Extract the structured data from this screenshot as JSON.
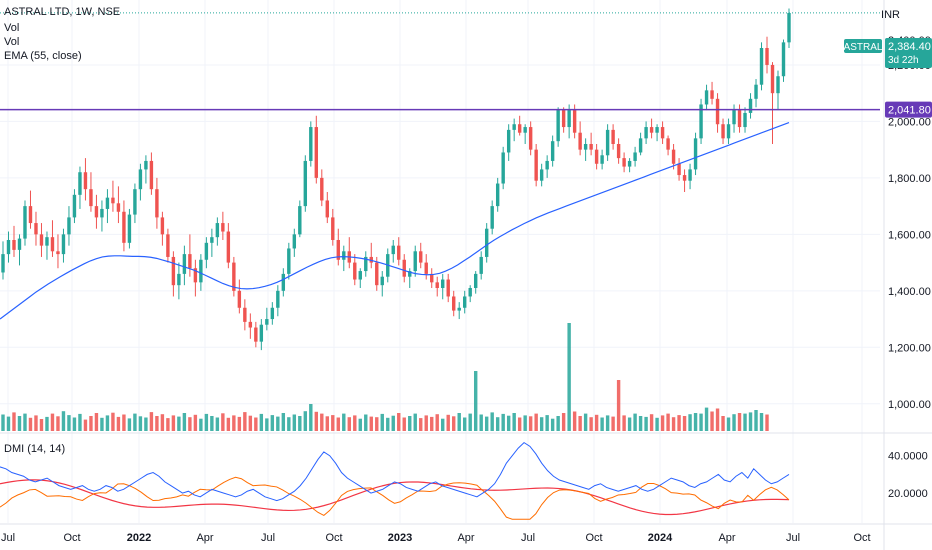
{
  "header": {
    "symbol_line": "ASTRAL LTD, 1W, NSE",
    "vol_label_1": "Vol",
    "vol_label_2": "Vol",
    "ema_label": "EMA (55, close)",
    "dmi_label": "DMI (14, 14)",
    "currency": "INR"
  },
  "price_tags": {
    "symbol": "ASTRAL",
    "last_price": "2,384.40",
    "countdown": "3d 22h",
    "hline_price": "2,041.80",
    "partial_top": "2,400.00"
  },
  "colors": {
    "up": "#26a69a",
    "down": "#ef5350",
    "ema": "#2962ff",
    "hline": "#673ab7",
    "dmi_plus": "#2962ff",
    "dmi_minus": "#ff6d00",
    "adx": "#f23645",
    "axis_text": "#131722",
    "grid": "#f0f3fa"
  },
  "chart_data": {
    "type": "candlestick",
    "interval": "1W",
    "x_range": [
      "2021-07",
      "2024-10"
    ],
    "x_tick_labels": [
      "Jul",
      "Oct",
      "2022",
      "Apr",
      "Jul",
      "Oct",
      "2023",
      "Apr",
      "Jul",
      "Oct",
      "2024",
      "Apr",
      "Jul",
      "Oct"
    ],
    "price_axis": {
      "ticks": [
        "2,200.00",
        "2,000.00",
        "1,800.00",
        "1,600.00",
        "1,400.00",
        "1,200.00",
        "1,000.00"
      ],
      "ylim": [
        900,
        2430
      ]
    },
    "indicator_axis": {
      "ticks": [
        "40.0000",
        "20.0000"
      ],
      "ylim": [
        4,
        50
      ]
    },
    "horizontal_line": 2041.8,
    "candles_ohlc": [
      [
        1465,
        1575,
        1440,
        1530
      ],
      [
        1530,
        1610,
        1500,
        1580
      ],
      [
        1580,
        1630,
        1520,
        1545
      ],
      [
        1545,
        1600,
        1490,
        1585
      ],
      [
        1585,
        1720,
        1560,
        1700
      ],
      [
        1700,
        1755,
        1620,
        1640
      ],
      [
        1640,
        1680,
        1560,
        1600
      ],
      [
        1600,
        1640,
        1520,
        1560
      ],
      [
        1560,
        1610,
        1510,
        1590
      ],
      [
        1590,
        1650,
        1520,
        1540
      ],
      [
        1540,
        1600,
        1480,
        1530
      ],
      [
        1530,
        1620,
        1500,
        1600
      ],
      [
        1600,
        1700,
        1560,
        1660
      ],
      [
        1660,
        1760,
        1640,
        1740
      ],
      [
        1740,
        1840,
        1690,
        1820
      ],
      [
        1820,
        1870,
        1720,
        1760
      ],
      [
        1760,
        1820,
        1680,
        1700
      ],
      [
        1700,
        1740,
        1620,
        1660
      ],
      [
        1660,
        1720,
        1610,
        1690
      ],
      [
        1690,
        1760,
        1640,
        1730
      ],
      [
        1730,
        1790,
        1680,
        1710
      ],
      [
        1710,
        1770,
        1640,
        1680
      ],
      [
        1680,
        1720,
        1540,
        1570
      ],
      [
        1570,
        1690,
        1550,
        1670
      ],
      [
        1670,
        1780,
        1640,
        1760
      ],
      [
        1760,
        1850,
        1720,
        1830
      ],
      [
        1830,
        1880,
        1780,
        1860
      ],
      [
        1860,
        1890,
        1740,
        1760
      ],
      [
        1760,
        1800,
        1620,
        1660
      ],
      [
        1660,
        1680,
        1560,
        1600
      ],
      [
        1600,
        1620,
        1500,
        1520
      ],
      [
        1520,
        1540,
        1380,
        1420
      ],
      [
        1420,
        1500,
        1370,
        1460
      ],
      [
        1460,
        1560,
        1420,
        1530
      ],
      [
        1530,
        1600,
        1450,
        1480
      ],
      [
        1480,
        1510,
        1380,
        1430
      ],
      [
        1430,
        1530,
        1400,
        1510
      ],
      [
        1510,
        1590,
        1480,
        1570
      ],
      [
        1570,
        1620,
        1520,
        1590
      ],
      [
        1590,
        1660,
        1560,
        1640
      ],
      [
        1640,
        1680,
        1580,
        1610
      ],
      [
        1610,
        1640,
        1480,
        1500
      ],
      [
        1500,
        1520,
        1380,
        1400
      ],
      [
        1400,
        1440,
        1320,
        1340
      ],
      [
        1340,
        1370,
        1260,
        1290
      ],
      [
        1290,
        1320,
        1230,
        1270
      ],
      [
        1270,
        1290,
        1200,
        1220
      ],
      [
        1220,
        1300,
        1190,
        1280
      ],
      [
        1280,
        1340,
        1260,
        1300
      ],
      [
        1300,
        1360,
        1280,
        1340
      ],
      [
        1340,
        1420,
        1310,
        1400
      ],
      [
        1400,
        1480,
        1380,
        1460
      ],
      [
        1460,
        1570,
        1440,
        1550
      ],
      [
        1550,
        1620,
        1520,
        1600
      ],
      [
        1600,
        1720,
        1590,
        1700
      ],
      [
        1700,
        1880,
        1680,
        1860
      ],
      [
        1860,
        2000,
        1840,
        1980
      ],
      [
        1980,
        2020,
        1780,
        1800
      ],
      [
        1800,
        1830,
        1700,
        1720
      ],
      [
        1720,
        1750,
        1640,
        1660
      ],
      [
        1660,
        1690,
        1560,
        1580
      ],
      [
        1580,
        1620,
        1490,
        1510
      ],
      [
        1510,
        1560,
        1470,
        1540
      ],
      [
        1540,
        1590,
        1480,
        1500
      ],
      [
        1500,
        1530,
        1420,
        1440
      ],
      [
        1440,
        1480,
        1410,
        1470
      ],
      [
        1470,
        1540,
        1450,
        1520
      ],
      [
        1520,
        1570,
        1480,
        1500
      ],
      [
        1500,
        1520,
        1400,
        1420
      ],
      [
        1420,
        1470,
        1380,
        1450
      ],
      [
        1450,
        1550,
        1430,
        1530
      ],
      [
        1530,
        1580,
        1500,
        1560
      ],
      [
        1560,
        1590,
        1490,
        1510
      ],
      [
        1510,
        1530,
        1430,
        1450
      ],
      [
        1450,
        1480,
        1410,
        1470
      ],
      [
        1470,
        1560,
        1450,
        1540
      ],
      [
        1540,
        1570,
        1480,
        1500
      ],
      [
        1500,
        1530,
        1440,
        1460
      ],
      [
        1460,
        1480,
        1410,
        1430
      ],
      [
        1430,
        1450,
        1380,
        1410
      ],
      [
        1410,
        1460,
        1370,
        1440
      ],
      [
        1440,
        1460,
        1360,
        1380
      ],
      [
        1380,
        1400,
        1310,
        1330
      ],
      [
        1330,
        1360,
        1300,
        1340
      ],
      [
        1340,
        1400,
        1320,
        1380
      ],
      [
        1380,
        1420,
        1360,
        1410
      ],
      [
        1410,
        1470,
        1390,
        1460
      ],
      [
        1460,
        1540,
        1440,
        1520
      ],
      [
        1520,
        1640,
        1500,
        1620
      ],
      [
        1620,
        1720,
        1600,
        1700
      ],
      [
        1700,
        1800,
        1680,
        1780
      ],
      [
        1780,
        1910,
        1760,
        1890
      ],
      [
        1890,
        1990,
        1860,
        1970
      ],
      [
        1970,
        2010,
        1930,
        1990
      ],
      [
        1990,
        2020,
        1950,
        1960
      ],
      [
        1960,
        1990,
        1920,
        1980
      ],
      [
        1980,
        2000,
        1880,
        1900
      ],
      [
        1900,
        1920,
        1770,
        1790
      ],
      [
        1790,
        1850,
        1770,
        1830
      ],
      [
        1830,
        1880,
        1800,
        1860
      ],
      [
        1860,
        1950,
        1840,
        1930
      ],
      [
        1930,
        2050,
        1910,
        2040
      ],
      [
        2040,
        2050,
        1960,
        1980
      ],
      [
        1980,
        2060,
        1940,
        2040
      ],
      [
        2040,
        2060,
        1940,
        1960
      ],
      [
        1960,
        2000,
        1880,
        1900
      ],
      [
        1900,
        1940,
        1860,
        1920
      ],
      [
        1920,
        1960,
        1880,
        1900
      ],
      [
        1900,
        1920,
        1830,
        1850
      ],
      [
        1850,
        1900,
        1830,
        1880
      ],
      [
        1880,
        1990,
        1860,
        1970
      ],
      [
        1970,
        1990,
        1900,
        1920
      ],
      [
        1920,
        1940,
        1850,
        1870
      ],
      [
        1870,
        1890,
        1820,
        1840
      ],
      [
        1840,
        1870,
        1820,
        1860
      ],
      [
        1860,
        1910,
        1840,
        1890
      ],
      [
        1890,
        1960,
        1880,
        1940
      ],
      [
        1940,
        2000,
        1920,
        1980
      ],
      [
        1980,
        2010,
        1940,
        1960
      ],
      [
        1960,
        1990,
        1930,
        1980
      ],
      [
        1980,
        2000,
        1920,
        1940
      ],
      [
        1940,
        1950,
        1880,
        1900
      ],
      [
        1900,
        1920,
        1830,
        1850
      ],
      [
        1850,
        1870,
        1790,
        1810
      ],
      [
        1810,
        1830,
        1750,
        1790
      ],
      [
        1790,
        1850,
        1760,
        1830
      ],
      [
        1830,
        1960,
        1810,
        1940
      ],
      [
        1940,
        2080,
        1920,
        2060
      ],
      [
        2060,
        2130,
        2040,
        2110
      ],
      [
        2110,
        2140,
        2060,
        2080
      ],
      [
        2080,
        2100,
        1960,
        1990
      ],
      [
        1990,
        2010,
        1920,
        1940
      ],
      [
        1940,
        2010,
        1920,
        1990
      ],
      [
        1990,
        2060,
        1960,
        2040
      ],
      [
        2040,
        2060,
        1960,
        1980
      ],
      [
        1980,
        2050,
        1960,
        2030
      ],
      [
        2030,
        2100,
        2010,
        2080
      ],
      [
        2080,
        2150,
        2050,
        2130
      ],
      [
        2130,
        2280,
        2110,
        2260
      ],
      [
        2260,
        2300,
        2170,
        2200
      ],
      [
        2200,
        2210,
        1920,
        2100
      ],
      [
        2100,
        2180,
        2040,
        2160
      ],
      [
        2160,
        2290,
        2140,
        2280
      ],
      [
        2280,
        2400,
        2260,
        2384
      ]
    ],
    "ema_55": [
      1300,
      1316,
      1332,
      1348,
      1364,
      1380,
      1396,
      1410,
      1424,
      1437,
      1450,
      1462,
      1474,
      1485,
      1496,
      1506,
      1514,
      1520,
      1523,
      1524,
      1524,
      1523,
      1522,
      1522,
      1521,
      1519,
      1515,
      1509,
      1503,
      1496,
      1489,
      1482,
      1475,
      1466,
      1456,
      1446,
      1436,
      1426,
      1418,
      1412,
      1408,
      1407,
      1408,
      1411,
      1416,
      1422,
      1430,
      1440,
      1451,
      1462,
      1473,
      1484,
      1494,
      1503,
      1511,
      1517,
      1520,
      1521,
      1520,
      1518,
      1515,
      1511,
      1506,
      1500,
      1494,
      1487,
      1480,
      1473,
      1466,
      1461,
      1458,
      1457,
      1458,
      1462,
      1470,
      1480,
      1492,
      1506,
      1520,
      1535,
      1550,
      1565,
      1579,
      1592,
      1604,
      1616,
      1627,
      1638,
      1648,
      1658,
      1667,
      1676,
      1684,
      1692,
      1700,
      1708,
      1716,
      1724,
      1732,
      1740,
      1748,
      1756,
      1764,
      1772,
      1780,
      1788,
      1796,
      1804,
      1812,
      1820,
      1828,
      1836,
      1844,
      1852,
      1860,
      1868,
      1876,
      1884,
      1892,
      1900,
      1908,
      1916,
      1924,
      1932,
      1940,
      1948,
      1956,
      1964,
      1972,
      1980,
      1988,
      1996
    ],
    "volume": [
      55,
      48,
      62,
      50,
      58,
      44,
      52,
      40,
      47,
      58,
      49,
      66,
      53,
      45,
      57,
      38,
      50,
      60,
      44,
      52,
      61,
      47,
      55,
      42,
      58,
      49,
      45,
      63,
      50,
      56,
      43,
      52,
      48,
      60,
      46,
      54,
      41,
      57,
      50,
      45,
      59,
      44,
      52,
      47,
      63,
      51,
      45,
      57,
      42,
      53,
      48,
      60,
      46,
      55,
      50,
      66,
      90,
      64,
      58,
      49,
      53,
      45,
      58,
      46,
      52,
      41,
      55,
      48,
      46,
      57,
      44,
      51,
      60,
      45,
      50,
      58,
      43,
      52,
      47,
      56,
      41,
      54,
      49,
      60,
      45,
      58,
      200,
      55,
      48,
      62,
      46,
      57,
      51,
      60,
      45,
      52,
      49,
      58,
      46,
      53,
      41,
      50,
      60,
      360,
      65,
      50,
      58,
      46,
      54,
      45,
      52,
      48,
      170,
      52,
      45,
      58,
      50,
      47,
      56,
      44,
      52,
      58,
      46,
      53,
      50,
      56,
      60,
      58,
      78,
      65,
      75,
      50,
      45,
      56,
      60,
      58,
      62,
      70,
      60,
      55
    ],
    "dmi_plus": [
      34,
      33,
      31,
      30,
      29,
      27,
      26,
      27,
      28,
      26,
      24,
      23,
      22,
      23,
      24,
      22,
      21,
      22,
      24,
      23,
      21,
      22,
      24,
      26,
      28,
      30,
      31,
      29,
      26,
      24,
      22,
      20,
      21,
      19,
      18,
      20,
      22,
      21,
      20,
      19,
      18,
      19,
      21,
      22,
      20,
      18,
      17,
      16,
      17,
      19,
      21,
      24,
      28,
      33,
      38,
      42,
      40,
      36,
      31,
      28,
      26,
      24,
      22,
      20,
      21,
      22,
      24,
      26,
      25,
      23,
      22,
      21,
      23,
      25,
      26,
      24,
      23,
      22,
      21,
      20,
      19,
      18,
      20,
      22,
      25,
      30,
      36,
      40,
      44,
      47,
      45,
      41,
      36,
      32,
      29,
      27,
      26,
      25,
      24,
      23,
      22,
      24,
      25,
      23,
      22,
      21,
      22,
      23,
      24,
      22,
      21,
      22,
      24,
      26,
      28,
      27,
      26,
      24,
      23,
      25,
      26,
      28,
      30,
      27,
      26,
      29,
      31,
      28,
      33,
      30,
      27,
      25,
      26,
      28,
      30
    ]
  }
}
